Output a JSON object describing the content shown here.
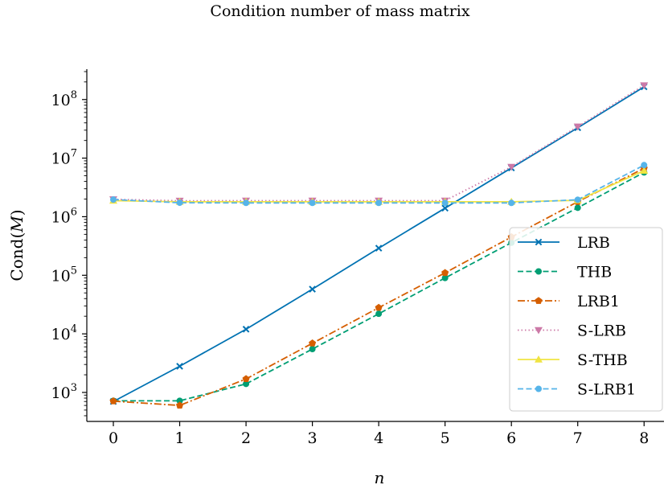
{
  "chart_data": {
    "type": "line",
    "title": "Condition number of mass matrix",
    "xlabel": "n",
    "ylabel_prefix": "Cond(",
    "ylabel_var": "M",
    "ylabel_suffix": ")",
    "yscale": "log",
    "x": [
      0,
      1,
      2,
      3,
      4,
      5,
      6,
      7,
      8
    ],
    "xlim": [
      -0.4,
      8.3
    ],
    "ylim": [
      320,
      330000000
    ],
    "xticks": [
      0,
      1,
      2,
      3,
      4,
      5,
      6,
      7,
      8
    ],
    "yticks": [
      {
        "exp": 3,
        "base": "10",
        "power": "3"
      },
      {
        "exp": 4,
        "base": "10",
        "power": "4"
      },
      {
        "exp": 5,
        "base": "10",
        "power": "5"
      },
      {
        "exp": 6,
        "base": "10",
        "power": "6"
      },
      {
        "exp": 7,
        "base": "10",
        "power": "7"
      },
      {
        "exp": 8,
        "base": "10",
        "power": "8"
      }
    ],
    "grid": false,
    "legend_position": "lower-right",
    "series": [
      {
        "name": "LRB",
        "color": "#0072b2",
        "dash": "solid",
        "marker": "x",
        "values": [
          700,
          2800,
          12000,
          58000,
          290000,
          1400000,
          6800000,
          33000000,
          165000000
        ]
      },
      {
        "name": "THB",
        "color": "#009e73",
        "dash": "dashed",
        "marker": "circle",
        "values": [
          720,
          720,
          1400,
          5500,
          22000,
          90000,
          360000,
          1420000,
          5700000
        ]
      },
      {
        "name": "LRB1",
        "color": "#d55e00",
        "dash": "dashdot",
        "marker": "pentagon",
        "values": [
          710,
          600,
          1700,
          6900,
          28000,
          110000,
          450000,
          1800000,
          6700000
        ]
      },
      {
        "name": "S-LRB",
        "color": "#cc79a7",
        "dash": "dotted",
        "marker": "triangle-down",
        "values": [
          1980000,
          1870000,
          1880000,
          1880000,
          1880000,
          1880000,
          7100000,
          34500000,
          175000000
        ]
      },
      {
        "name": "S-THB",
        "color": "#f0e442",
        "dash": "solid",
        "marker": "triangle-up",
        "values": [
          1880000,
          1800000,
          1800000,
          1800000,
          1800000,
          1800000,
          1800000,
          1900000,
          6100000
        ]
      },
      {
        "name": "S-LRB1",
        "color": "#56b4e9",
        "dash": "dashed",
        "marker": "circle",
        "values": [
          1960000,
          1730000,
          1720000,
          1720000,
          1720000,
          1720000,
          1720000,
          1950000,
          7600000
        ]
      }
    ]
  }
}
